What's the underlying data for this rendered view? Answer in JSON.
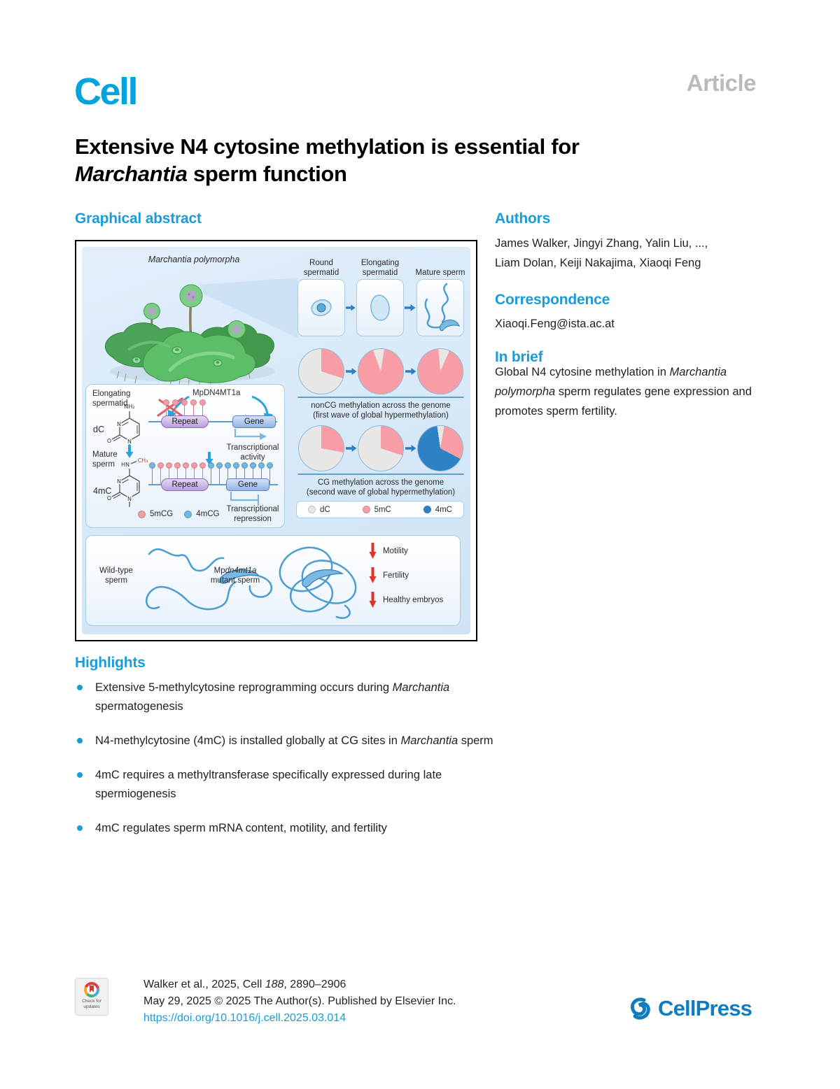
{
  "header": {
    "journal": "Cell",
    "article_type": "Article",
    "title_pre": "Extensive N4 cytosine methylation is essential for",
    "title_italic": "Marchantia",
    "title_post": " sperm function"
  },
  "sections": {
    "graphical_abstract": "Graphical abstract",
    "authors": "Authors",
    "correspondence": "Correspondence",
    "in_brief": "In brief",
    "highlights": "Highlights"
  },
  "authors": {
    "line1": "James Walker, Jingyi Zhang, Yalin Liu, ...,",
    "line2": "Liam Dolan, Keiji Nakajima, Xiaoqi Feng"
  },
  "correspondence": {
    "email": "Xiaoqi.Feng@ista.ac.at"
  },
  "in_brief": {
    "pre": "Global N4 cytosine methylation in ",
    "italic": "Marchantia polymorpha",
    "post": " sperm regulates gene expression and promotes sperm fertility."
  },
  "highlights": [
    {
      "pre": "Extensive 5-methylcytosine reprogramming occurs during ",
      "italic": "Marchantia",
      "post": " spermatogenesis"
    },
    {
      "pre": "N4-methylcytosine (4mC) is installed globally at CG sites in ",
      "italic": "Marchantia",
      "post": " sperm"
    },
    {
      "pre": "4mC requires a methyltransferase specifically expressed during late spermiogenesis",
      "italic": "",
      "post": ""
    },
    {
      "pre": "4mC regulates sperm mRNA content, motility, and fertility",
      "italic": "",
      "post": ""
    }
  ],
  "graphical_abstract": {
    "plant_label": "Marchantia polymorpha",
    "stages": [
      {
        "line1": "Round",
        "line2": "spermatid"
      },
      {
        "line1": "Elongating",
        "line2": "spermatid"
      },
      {
        "line1": "Mature sperm",
        "line2": ""
      }
    ],
    "legend": {
      "items": [
        {
          "label": "dC",
          "color": "#e8e7e5"
        },
        {
          "label": "5mC",
          "color": "#f89da5"
        },
        {
          "label": "4mC",
          "color": "#2e81c4"
        }
      ]
    },
    "mol_box": {
      "stage1_line1": "Elongating",
      "stage1_line2": "spermatid",
      "enzyme": "MpDN4MT1a",
      "dc_label": "dC",
      "mature_line1": "Mature",
      "mature_line2": "sperm",
      "fourmc_label": "4mC",
      "nh2": "NH₂",
      "hn": "HN",
      "ch3": "CH₃",
      "n_ring": "N",
      "n_bottom": "N",
      "o": "O",
      "repeat": "Repeat",
      "gene": "Gene",
      "activity_line1": "Transcriptional",
      "activity_line2": "activity",
      "repression_line1": "Transcriptional",
      "repression_line2": "repression",
      "lollipops_top": [
        "5mCG",
        "5mCG",
        "5mCG",
        "5mCG",
        "5mCG"
      ],
      "lollipops_bottom": [
        "4mCG",
        "5mCG",
        "5mCG",
        "5mCG",
        "5mCG",
        "5mCG",
        "5mCG",
        "4mCG",
        "4mCG",
        "4mCG",
        "4mCG",
        "4mCG",
        "4mCG",
        "4mCG",
        "4mCG"
      ],
      "legend": [
        {
          "label": "5mCG",
          "color": "#f49ca5"
        },
        {
          "label": "4mCG",
          "color": "#74b6e4"
        }
      ]
    },
    "bottom": {
      "wt_line1": "Wild-type",
      "wt_line2": "sperm",
      "mut_prefix": "Mp",
      "mut_italic": "dn4mt1a",
      "mut_line2": "mutant sperm",
      "effects": [
        "Motility",
        "Fertility",
        "Healthy embryos"
      ]
    }
  },
  "chart_data": [
    {
      "type": "pie",
      "title": "nonCG methylation across the genome",
      "subtitle": "(first wave of global hypermethylation)",
      "stages": [
        "Round spermatid",
        "Elongating spermatid",
        "Mature sperm"
      ],
      "legend_labels": [
        "dC",
        "5mC",
        "4mC"
      ],
      "pies": [
        {
          "stage": "Round spermatid",
          "from_deg": 0,
          "slices": [
            {
              "label": "5mC",
              "value": 30
            },
            {
              "label": "dC",
              "value": 70
            }
          ]
        },
        {
          "stage": "Elongating spermatid",
          "from_deg": -20,
          "slices": [
            {
              "label": "dC",
              "value": 8
            },
            {
              "label": "5mC",
              "value": 92
            }
          ]
        },
        {
          "stage": "Mature sperm",
          "from_deg": -5,
          "slices": [
            {
              "label": "dC",
              "value": 8
            },
            {
              "label": "5mC",
              "value": 92
            }
          ]
        }
      ]
    },
    {
      "type": "pie",
      "title": "CG methylation across the genome",
      "subtitle": "(second wave of global hypermethylation)",
      "stages": [
        "Round spermatid",
        "Elongating spermatid",
        "Mature sperm"
      ],
      "legend_labels": [
        "dC",
        "5mC",
        "4mC"
      ],
      "pies": [
        {
          "stage": "Round spermatid",
          "from_deg": 0,
          "slices": [
            {
              "label": "5mC",
              "value": 28
            },
            {
              "label": "dC",
              "value": 72
            }
          ]
        },
        {
          "stage": "Elongating spermatid",
          "from_deg": 0,
          "slices": [
            {
              "label": "5mC",
              "value": 30
            },
            {
              "label": "dC",
              "value": 70
            }
          ]
        },
        {
          "stage": "Mature sperm",
          "from_deg": -8,
          "slices": [
            {
              "label": "dC",
              "value": 5
            },
            {
              "label": "5mC",
              "value": 30
            },
            {
              "label": "4mC",
              "value": 65
            }
          ]
        }
      ]
    }
  ],
  "footer": {
    "citation_pre": "Walker et al., 2025, Cell ",
    "citation_vol": "188",
    "citation_post": ", 2890–2906",
    "line2": "May 29, 2025 © 2025 The Author(s). Published by Elsevier Inc.",
    "doi": "https://doi.org/10.1016/j.cell.2025.03.014",
    "badge_line1": "Check for",
    "badge_line2": "updates",
    "publisher": "CellPress"
  }
}
